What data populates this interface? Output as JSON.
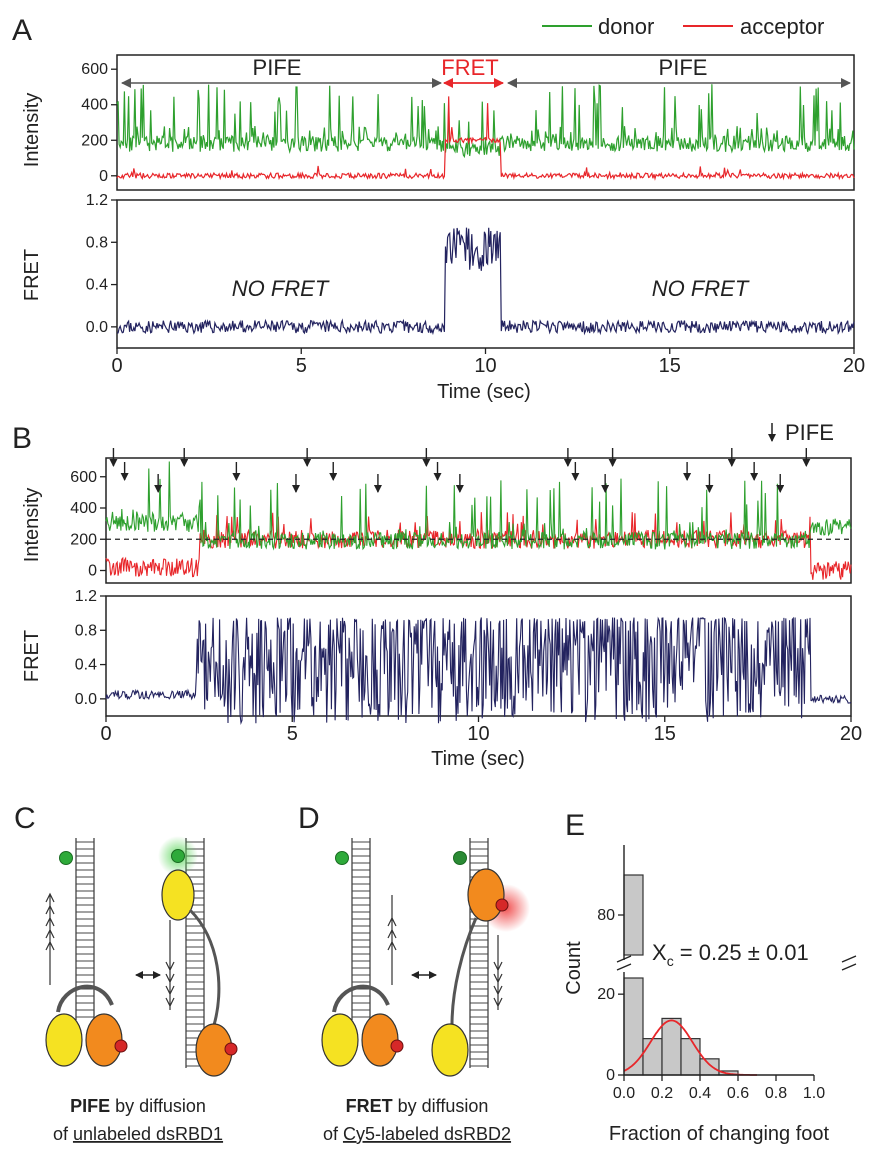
{
  "panels": {
    "A": "A",
    "B": "B",
    "C": "C",
    "D": "D",
    "E": "E"
  },
  "legend": {
    "donor": "donor",
    "acceptor": "acceptor"
  },
  "colors": {
    "donor": "#2ea02e",
    "acceptor": "#e8262a",
    "fret": "#23235f",
    "bar": "#c8c8c8",
    "fit": "#e8262a"
  },
  "panelA": {
    "top": {
      "ylabel": "Intensity",
      "yticks": [
        "600",
        "400",
        "200",
        "0"
      ],
      "annotations": {
        "pife_left": "PIFE",
        "fret": "FRET",
        "pife_right": "PIFE"
      }
    },
    "bottom": {
      "ylabel": "FRET",
      "yticks": [
        "1.2",
        "0.8",
        "0.4",
        "0.0"
      ],
      "annotations": {
        "nofret_left": "NO FRET",
        "nofret_right": "NO FRET"
      }
    },
    "xticks": [
      "0",
      "5",
      "10",
      "15",
      "20"
    ],
    "xlabel": "Time (sec)"
  },
  "panelB": {
    "top": {
      "ylabel": "Intensity",
      "yticks": [
        "600",
        "400",
        "200",
        "0"
      ],
      "pife_label": "PIFE"
    },
    "bottom": {
      "ylabel": "FRET",
      "yticks": [
        "1.2",
        "0.8",
        "0.4",
        "0.0"
      ]
    },
    "xticks": [
      "0",
      "5",
      "10",
      "15",
      "20"
    ],
    "xlabel": "Time (sec)"
  },
  "panelC": {
    "bold": "PIFE",
    "line1_rest": " by diffusion",
    "line2_pre": "of ",
    "line2_u": "unlabeled dsRBD1"
  },
  "panelD": {
    "bold": "FRET",
    "line1_rest": " by diffusion",
    "line2_pre": "of ",
    "line2_u": "Cy5-labeled dsRBD2"
  },
  "chart_data": [
    {
      "panel": "A-top",
      "type": "line",
      "title": "",
      "xlabel": "",
      "ylabel": "Intensity",
      "xlim": [
        0,
        20
      ],
      "ylim": [
        -80,
        680
      ],
      "series": [
        {
          "name": "donor",
          "segments": [
            {
              "x_range": [
                0,
                8.9
              ],
              "baseline": 180,
              "peak_max": 520
            },
            {
              "x_range": [
                8.9,
                10.4
              ],
              "baseline": 150,
              "peak_max": 450
            },
            {
              "x_range": [
                10.4,
                20
              ],
              "baseline": 180,
              "peak_max": 520
            }
          ]
        },
        {
          "name": "acceptor",
          "segments": [
            {
              "x_range": [
                0,
                8.9
              ],
              "baseline": 0,
              "peak_max": 60
            },
            {
              "x_range": [
                8.9,
                10.4
              ],
              "baseline": 200,
              "peak_max": 470
            },
            {
              "x_range": [
                10.4,
                20
              ],
              "baseline": 0,
              "peak_max": 60
            }
          ]
        }
      ]
    },
    {
      "panel": "A-bottom",
      "type": "line",
      "xlabel": "Time (sec)",
      "ylabel": "FRET",
      "xlim": [
        0,
        20
      ],
      "ylim": [
        -0.2,
        1.2
      ],
      "series": [
        {
          "name": "",
          "segments": [
            {
              "x_range": [
                0,
                8.9
              ],
              "level": 0.0
            },
            {
              "x_range": [
                8.9,
                10.4
              ],
              "level": 0.75,
              "peak_max": 0.95
            },
            {
              "x_range": [
                10.4,
                20
              ],
              "level": 0.0
            }
          ]
        }
      ]
    },
    {
      "panel": "B-top",
      "type": "line",
      "xlabel": "",
      "ylabel": "Intensity",
      "xlim": [
        0,
        20
      ],
      "ylim": [
        -80,
        720
      ],
      "threshold": 200,
      "series": [
        {
          "name": "donor",
          "segments": [
            {
              "x_range": [
                0,
                2.5
              ],
              "baseline": 300,
              "peak_max": 700
            },
            {
              "x_range": [
                2.5,
                18.9
              ],
              "baseline": 190,
              "peak_max": 600
            },
            {
              "x_range": [
                18.9,
                20
              ],
              "baseline": 280,
              "peak_max": 350
            }
          ]
        },
        {
          "name": "acceptor",
          "segments": [
            {
              "x_range": [
                0,
                2.5
              ],
              "baseline": 20
            },
            {
              "x_range": [
                2.5,
                18.9
              ],
              "baseline": 200,
              "peak_max": 380
            },
            {
              "x_range": [
                18.9,
                20
              ],
              "baseline": 0
            }
          ]
        }
      ],
      "pife_arrows_x": [
        0.2,
        0.5,
        1.4,
        2.1,
        3.5,
        5.1,
        5.4,
        6.1,
        7.3,
        8.6,
        8.9,
        9.5,
        12.4,
        12.6,
        13.4,
        13.6,
        15.6,
        16.2,
        16.8,
        17.4,
        18.1,
        18.8
      ]
    },
    {
      "panel": "B-bottom",
      "type": "line",
      "xlabel": "Time (sec)",
      "ylabel": "FRET",
      "xlim": [
        0,
        20
      ],
      "ylim": [
        -0.2,
        1.2
      ],
      "series": [
        {
          "name": "",
          "segments": [
            {
              "x_range": [
                0,
                2.4
              ],
              "level": 0.05
            },
            {
              "x_range": [
                2.4,
                18.9
              ],
              "level": 0.5,
              "peak_max": 0.95
            },
            {
              "x_range": [
                18.9,
                20
              ],
              "level": 0.0
            }
          ]
        }
      ]
    },
    {
      "panel": "E",
      "type": "bar",
      "xlabel": "Fraction of  changing foot",
      "ylabel": "Count",
      "xticks": [
        "0.0",
        "0.2",
        "0.4",
        "0.6",
        "0.8",
        "1.0"
      ],
      "yticks": [
        "0",
        "20",
        "80"
      ],
      "xlim": [
        0,
        1
      ],
      "bin_width": 0.1,
      "bins": [
        0.05,
        0.15,
        0.25,
        0.35,
        0.45,
        0.55
      ],
      "values": [
        90,
        9,
        14,
        9,
        4,
        1
      ],
      "fit": {
        "type": "gaussian",
        "center": 0.25,
        "amplitude": 13.5,
        "sigma": 0.11
      },
      "annotation": "X",
      "annotation_sub": "c",
      "annotation_rest": " = 0.25 ± 0.01"
    }
  ]
}
